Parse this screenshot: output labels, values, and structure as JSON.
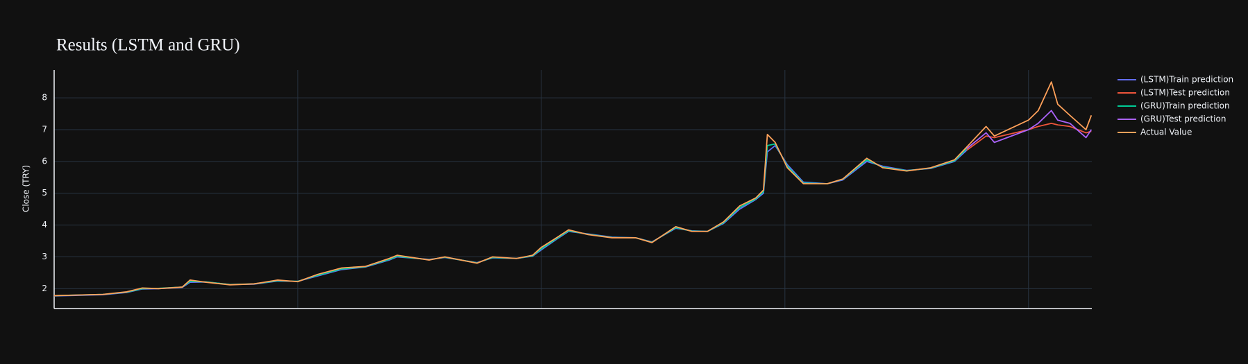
{
  "chart_data": {
    "type": "line",
    "title": "Results (LSTM and GRU)",
    "y_label": "Close (TRY)",
    "x": [
      0,
      51,
      100,
      149,
      181,
      214,
      263,
      279,
      312,
      361,
      410,
      459,
      500,
      541,
      590,
      639,
      688,
      704,
      770,
      802,
      868,
      900,
      949,
      982,
      1000,
      1031,
      1056,
      1096,
      1145,
      1194,
      1227,
      1276,
      1309,
      1341,
      1374,
      1407,
      1440,
      1456,
      1464,
      1480,
      1505,
      1538,
      1587,
      1619,
      1668,
      1701,
      1750,
      1799,
      1848,
      1873,
      1913,
      1930,
      2000,
      2020,
      2047,
      2060,
      2085,
      2118,
      2129
    ],
    "series": [
      {
        "name": "(LSTM)Train prediction",
        "color": "#636efa",
        "values": [
          1.77,
          1.79,
          1.81,
          1.88,
          1.99,
          2.0,
          2.04,
          2.2,
          2.21,
          2.13,
          2.14,
          2.24,
          2.23,
          2.4,
          2.6,
          2.68,
          2.9,
          3.0,
          2.92,
          2.98,
          2.82,
          2.97,
          2.95,
          3.02,
          3.22,
          3.55,
          3.8,
          3.72,
          3.62,
          3.6,
          3.47,
          3.9,
          3.82,
          3.8,
          4.05,
          4.5,
          4.8,
          5.0,
          6.3,
          6.5,
          5.9,
          5.35,
          5.3,
          5.42,
          6.0,
          5.85,
          5.72,
          5.78,
          6.0,
          6.35,
          null,
          null,
          null,
          null,
          null,
          null,
          null,
          null,
          null
        ]
      },
      {
        "name": "(LSTM)Test prediction",
        "color": "#ef553b",
        "values": [
          null,
          null,
          null,
          null,
          null,
          null,
          null,
          null,
          null,
          null,
          null,
          null,
          null,
          null,
          null,
          null,
          null,
          null,
          null,
          null,
          null,
          null,
          null,
          null,
          null,
          null,
          null,
          null,
          null,
          null,
          null,
          null,
          null,
          null,
          null,
          null,
          null,
          null,
          null,
          null,
          null,
          null,
          null,
          null,
          null,
          null,
          null,
          null,
          null,
          6.35,
          6.8,
          6.75,
          7.0,
          7.1,
          7.2,
          7.15,
          7.1,
          6.9,
          6.95
        ]
      },
      {
        "name": "(GRU)Train prediction",
        "color": "#00cc96",
        "values": [
          1.78,
          1.8,
          1.82,
          1.89,
          2.0,
          2.01,
          2.05,
          2.23,
          2.21,
          2.13,
          2.15,
          2.25,
          2.23,
          2.42,
          2.62,
          2.69,
          2.92,
          3.02,
          2.91,
          2.99,
          2.81,
          2.98,
          2.95,
          3.03,
          3.25,
          3.57,
          3.82,
          3.71,
          3.61,
          3.6,
          3.46,
          3.92,
          3.81,
          3.8,
          4.07,
          4.55,
          4.82,
          5.05,
          6.5,
          6.55,
          5.85,
          5.32,
          5.3,
          5.44,
          6.05,
          5.82,
          5.71,
          5.79,
          6.02,
          6.4,
          null,
          null,
          null,
          null,
          null,
          null,
          null,
          null,
          null
        ]
      },
      {
        "name": "(GRU)Test prediction",
        "color": "#ab63fa",
        "values": [
          null,
          null,
          null,
          null,
          null,
          null,
          null,
          null,
          null,
          null,
          null,
          null,
          null,
          null,
          null,
          null,
          null,
          null,
          null,
          null,
          null,
          null,
          null,
          null,
          null,
          null,
          null,
          null,
          null,
          null,
          null,
          null,
          null,
          null,
          null,
          null,
          null,
          null,
          null,
          null,
          null,
          null,
          null,
          null,
          null,
          null,
          null,
          null,
          null,
          6.4,
          6.9,
          6.6,
          7.0,
          7.2,
          7.6,
          7.3,
          7.2,
          6.75,
          7.0
        ]
      },
      {
        "name": "Actual Value",
        "color": "#ffa15a",
        "values": [
          1.78,
          1.8,
          1.82,
          1.9,
          2.02,
          2.0,
          2.05,
          2.27,
          2.2,
          2.12,
          2.15,
          2.27,
          2.22,
          2.45,
          2.65,
          2.7,
          2.95,
          3.05,
          2.9,
          3.0,
          2.8,
          3.0,
          2.95,
          3.05,
          3.3,
          3.6,
          3.85,
          3.7,
          3.6,
          3.6,
          3.45,
          3.95,
          3.8,
          3.8,
          4.1,
          4.6,
          4.85,
          5.1,
          6.85,
          6.6,
          5.8,
          5.3,
          5.3,
          5.45,
          6.1,
          5.8,
          5.7,
          5.8,
          6.05,
          6.45,
          7.1,
          6.8,
          7.3,
          7.6,
          8.5,
          7.8,
          7.45,
          7.0,
          7.45
        ]
      }
    ],
    "xlim": [
      0,
      2130
    ],
    "xticks": [
      500,
      1000,
      1500,
      2000
    ],
    "ylim": [
      1.375,
      8.875
    ],
    "yticks": [
      2,
      3,
      4,
      5,
      6,
      7,
      8
    ],
    "grid": true,
    "legend": "right"
  }
}
